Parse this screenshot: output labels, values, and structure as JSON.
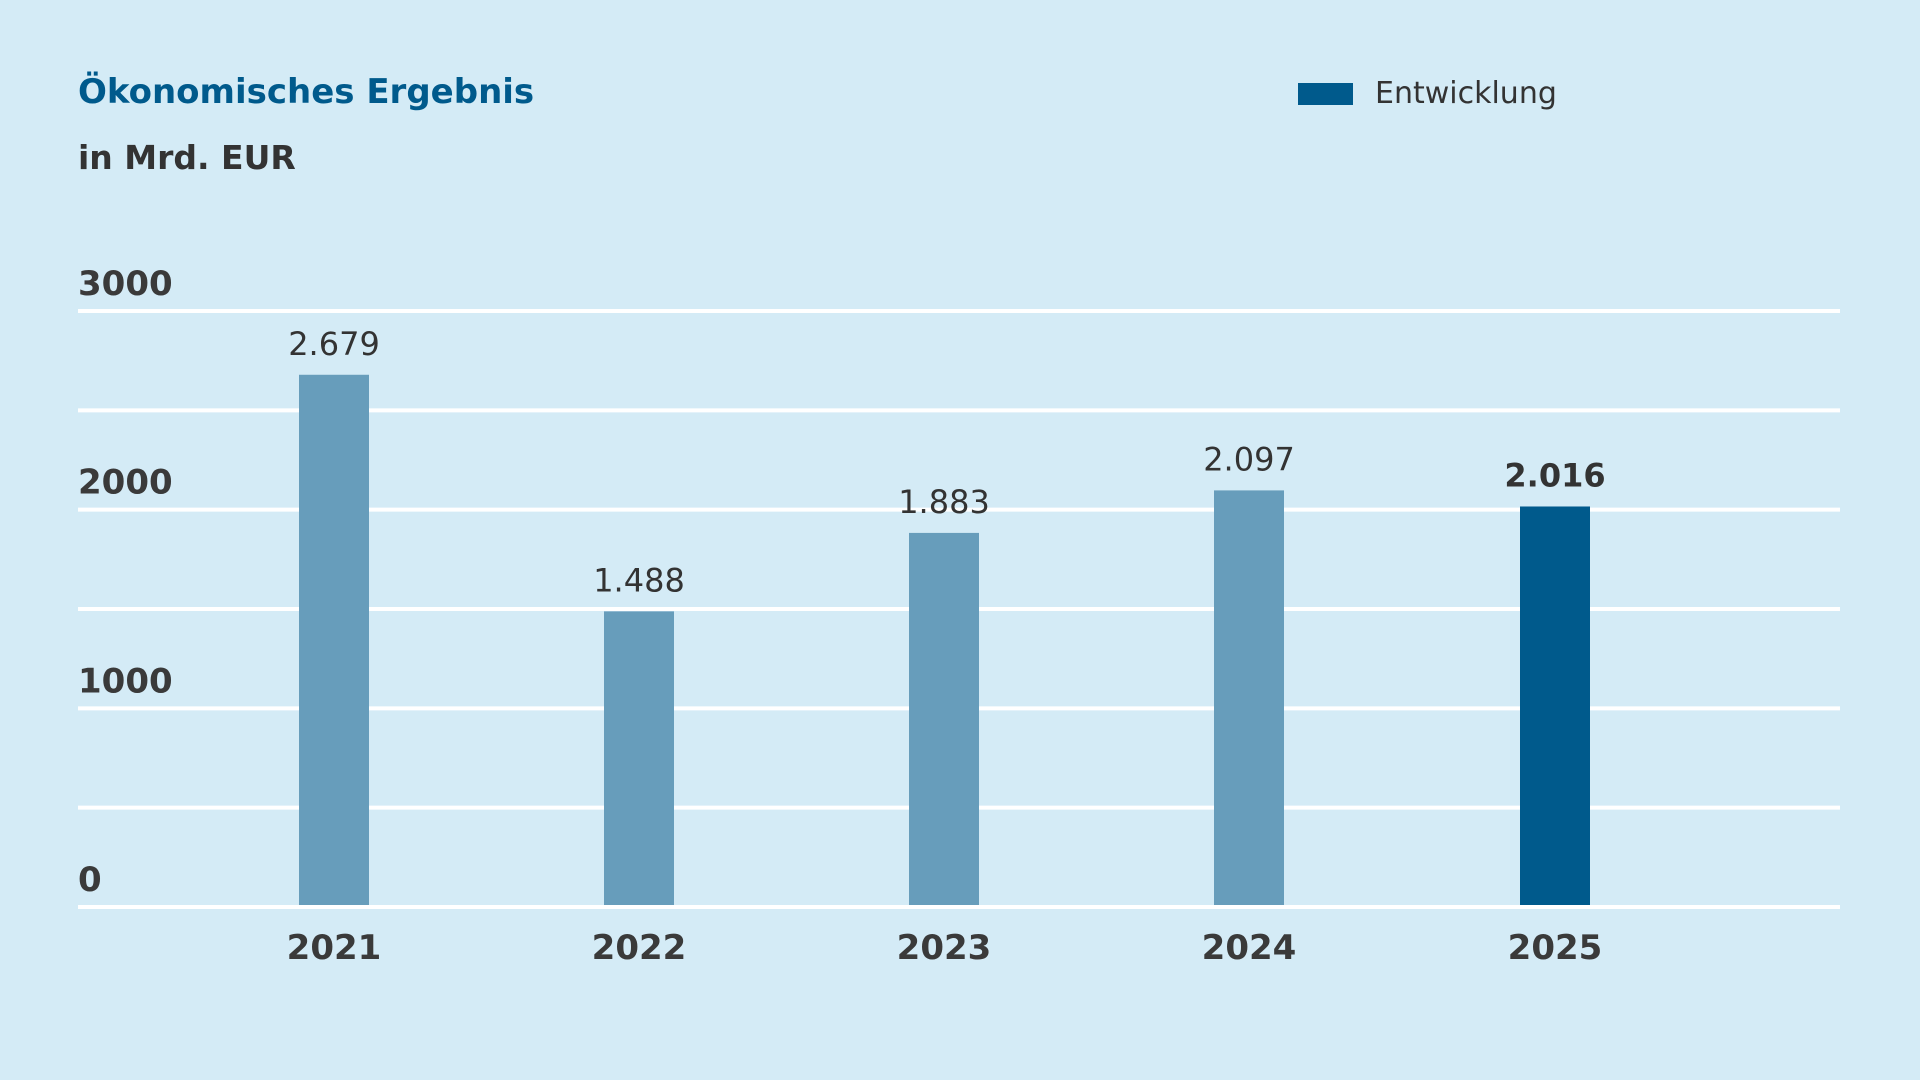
{
  "chart_data": {
    "type": "bar",
    "title": "Ökonomisches Ergebnis",
    "subtitle": "in Mrd. EUR",
    "xlabel": "",
    "ylabel": "",
    "ylim": [
      0,
      3000
    ],
    "yticks": [
      0,
      1000,
      2000,
      3000
    ],
    "grid": true,
    "categories": [
      "2021",
      "2022",
      "2023",
      "2024",
      "2025"
    ],
    "values": [
      2679,
      1488,
      1883,
      2097,
      2016
    ],
    "value_labels": [
      "2.679",
      "1.488",
      "1.883",
      "2.097",
      "2.016"
    ],
    "highlight_index": 4,
    "legend": [
      {
        "label": "Entwicklung",
        "color": "#005a8c"
      }
    ],
    "legend_position": "top-right",
    "colors": {
      "bar": "#679dbb",
      "highlight": "#005a8c",
      "grid": "#ffffff",
      "background": "#d4ebf6"
    }
  }
}
